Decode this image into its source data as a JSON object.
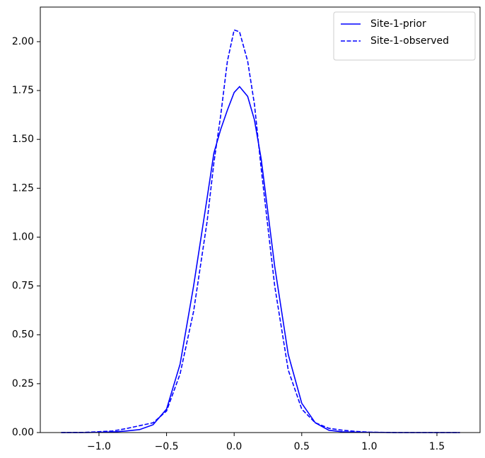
{
  "chart_data": {
    "type": "line",
    "x": [
      -1.28,
      -1.1,
      -0.9,
      -0.8,
      -0.7,
      -0.6,
      -0.5,
      -0.4,
      -0.3,
      -0.2,
      -0.15,
      -0.1,
      -0.05,
      0,
      0.04,
      0.1,
      0.15,
      0.2,
      0.3,
      0.4,
      0.5,
      0.6,
      0.7,
      0.8,
      0.9,
      1.0,
      1.2,
      1.4,
      1.67
    ],
    "series": [
      {
        "name": "Site-1-prior",
        "color": "#0000ff",
        "linestyle": "solid",
        "values": [
          0,
          0,
          0.003,
          0.008,
          0.015,
          0.04,
          0.12,
          0.35,
          0.75,
          1.2,
          1.43,
          1.55,
          1.65,
          1.74,
          1.77,
          1.72,
          1.6,
          1.4,
          0.85,
          0.4,
          0.15,
          0.05,
          0.012,
          0.004,
          0.002,
          0.001,
          0,
          0,
          0
        ]
      },
      {
        "name": "Site-1-observed",
        "color": "#0000ff",
        "linestyle": "dashed",
        "values": [
          0,
          0.001,
          0.008,
          0.02,
          0.035,
          0.05,
          0.11,
          0.3,
          0.62,
          1.08,
          1.38,
          1.62,
          1.9,
          2.06,
          2.05,
          1.9,
          1.68,
          1.35,
          0.75,
          0.32,
          0.12,
          0.05,
          0.022,
          0.012,
          0.006,
          0.002,
          0,
          0,
          0
        ]
      }
    ],
    "xlim": [
      -1.434,
      1.819
    ],
    "ylim": [
      0,
      2.177
    ],
    "xticks": [
      {
        "value": -1,
        "label": "−1.0"
      },
      {
        "value": -0.5,
        "label": "−0.5"
      },
      {
        "value": 0,
        "label": "0.0"
      },
      {
        "value": 0.5,
        "label": "0.5"
      },
      {
        "value": 1,
        "label": "1.0"
      },
      {
        "value": 1.5,
        "label": "1.5"
      }
    ],
    "yticks": [
      {
        "value": 0,
        "label": "0.00"
      },
      {
        "value": 0.25,
        "label": "0.25"
      },
      {
        "value": 0.5,
        "label": "0.50"
      },
      {
        "value": 0.75,
        "label": "0.75"
      },
      {
        "value": 1,
        "label": "1.00"
      },
      {
        "value": 1.25,
        "label": "1.25"
      },
      {
        "value": 1.5,
        "label": "1.50"
      },
      {
        "value": 1.75,
        "label": "1.75"
      },
      {
        "value": 2,
        "label": "2.00"
      }
    ],
    "legend": "upper right"
  }
}
